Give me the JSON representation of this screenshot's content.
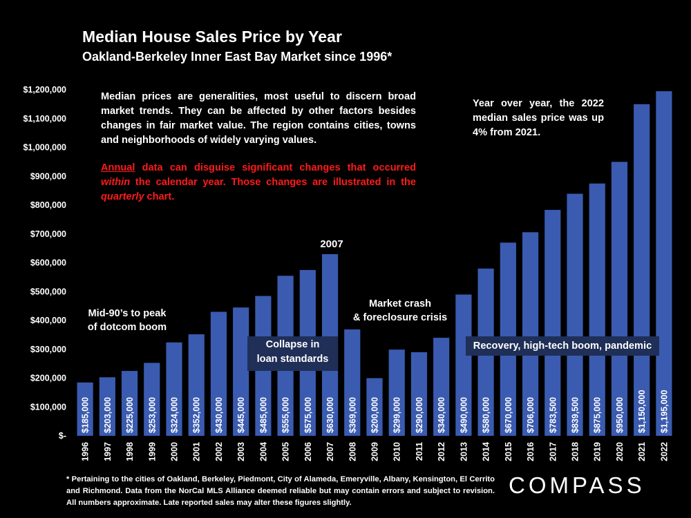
{
  "title": "Median House Sales Price by Year",
  "subtitle": "Oakland-Berkeley Inner East Bay Market since 1996*",
  "note": {
    "para1": "Median prices are generalities, most useful to discern broad market trends. They can be affected by other factors besides changes in fair market value. The region contains cities, towns and neighborhoods of widely varying values.",
    "para2_annual": "Annual",
    "para2_a": " data can disguise significant changes that occurred ",
    "para2_within": "within",
    "para2_b": " the calendar year. Those changes are illustrated in the ",
    "para2_quarterly": "quarterly",
    "para2_c": " chart."
  },
  "yoy_note": "Year over year, the 2022 median sales price was up 4% from 2021.",
  "annotations": {
    "dotcom_line1": "Mid-90’s to peak",
    "dotcom_line2": "of dotcom boom",
    "peak_label": "2007",
    "crash_line1": "Market crash",
    "crash_line2": "& foreclosure crisis",
    "collapse_line1": "Collapse in",
    "collapse_line2": "loan standards",
    "recovery": "Recovery, high-tech boom, pandemic"
  },
  "footnote": "* Pertaining to the cities of Oakland, Berkeley, Piedmont, City of Alameda, Emeryville, Albany, Kensington, El Cerrito and Richmond. Data from the NorCal MLS Alliance deemed reliable but may contain errors and subject to revision. All numbers approximate. Late reported sales may alter these figures slightly.",
  "logo": "COMPASS",
  "colors": {
    "bar": "#3a5bb0",
    "background": "#000000",
    "note_red": "#ff1a1a",
    "box": "#1f2f57"
  },
  "chart_data": {
    "type": "bar",
    "title": "Median House Sales Price by Year",
    "xlabel": "",
    "ylabel": "",
    "ylim": [
      0,
      1200000
    ],
    "ytick_values": [
      0,
      100000,
      200000,
      300000,
      400000,
      500000,
      600000,
      700000,
      800000,
      900000,
      1000000,
      1100000,
      1200000
    ],
    "ytick_labels": [
      "$-",
      "$100,000",
      "$200,000",
      "$300,000",
      "$400,000",
      "$500,000",
      "$600,000",
      "$700,000",
      "$800,000",
      "$900,000",
      "$1,000,000",
      "$1,100,000",
      "$1,200,000"
    ],
    "categories": [
      "1996",
      "1997",
      "1998",
      "1999",
      "2000",
      "2001",
      "2002",
      "2003",
      "2004",
      "2005",
      "2006",
      "2007",
      "2008",
      "2009",
      "2010",
      "2011",
      "2012",
      "2013",
      "2014",
      "2015",
      "2016",
      "2017",
      "2018",
      "2019",
      "2020",
      "2021",
      "2022"
    ],
    "values": [
      185000,
      203000,
      225000,
      253000,
      324000,
      352000,
      430000,
      445000,
      485000,
      555000,
      575000,
      630000,
      369000,
      200000,
      299000,
      290000,
      340000,
      490000,
      580000,
      670000,
      706000,
      783500,
      839500,
      875000,
      950000,
      1150000,
      1195000
    ],
    "value_labels": [
      "$185,000",
      "$203,000",
      "$225,000",
      "$253,000",
      "$324,000",
      "$352,000",
      "$430,000",
      "$445,000",
      "$485,000",
      "$555,000",
      "$575,000",
      "$630,000",
      "$369,000",
      "$200,000",
      "$299,000",
      "$290,000",
      "$340,000",
      "$490,000",
      "$580,000",
      "$670,000",
      "$706,000",
      "$783,500",
      "$839,500",
      "$875,000",
      "$950,000",
      "$1,150,000",
      "$1,195,000"
    ]
  }
}
